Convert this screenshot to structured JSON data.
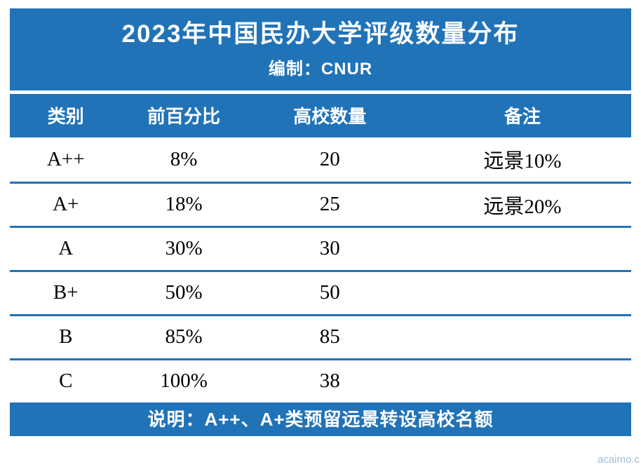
{
  "title": "2023年中国民办大学评级数量分布",
  "subtitle": "编制：CNUR",
  "colors": {
    "primary_blue": "#2173B8",
    "body_text": "#000000",
    "header_text": "#FFFFFF"
  },
  "chart_data": {
    "type": "table",
    "title": "2023年中国民办大学评级数量分布",
    "subtitle": "编制：CNUR",
    "columns": [
      "类别",
      "前百分比",
      "高校数量",
      "备注"
    ],
    "rows": [
      [
        "A++",
        "8%",
        "20",
        "远景10%"
      ],
      [
        "A+",
        "18%",
        "25",
        "远景20%"
      ],
      [
        "A",
        "30%",
        "30",
        ""
      ],
      [
        "B+",
        "50%",
        "50",
        ""
      ],
      [
        "B",
        "85%",
        "85",
        ""
      ],
      [
        "C",
        "100%",
        "38",
        ""
      ]
    ],
    "note": "说明：A++、A+类预留远景转设高校名额",
    "legend_position": "none",
    "grid": "horizontal-separators"
  },
  "footer_note": "说明：A++、A+类预留远景转设高校名额",
  "watermark": "acaimo.c"
}
